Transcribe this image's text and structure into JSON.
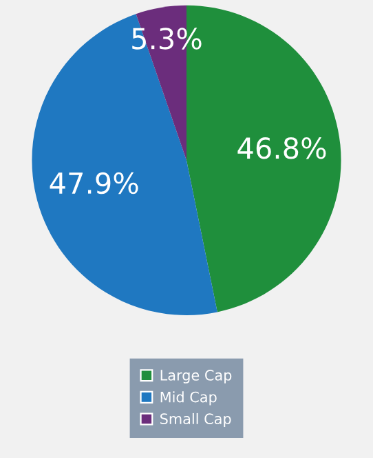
{
  "chart_data": {
    "type": "pie",
    "categories": [
      "Large Cap",
      "Mid Cap",
      "Small Cap"
    ],
    "values": [
      46.8,
      47.9,
      5.3
    ],
    "colors": [
      "#1f8f3c",
      "#1f78c1",
      "#6b2d7c"
    ],
    "value_labels": [
      "46.8%",
      "47.9%",
      "5.3%"
    ],
    "legend": "bottom"
  }
}
